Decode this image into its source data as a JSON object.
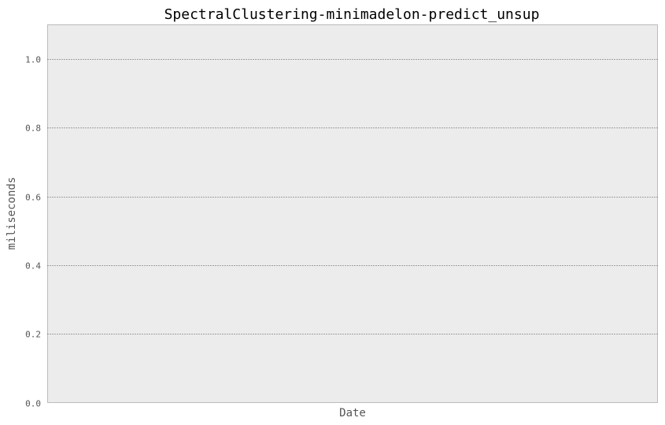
{
  "chart_data": {
    "type": "line",
    "title": "SpectralClustering-minimadelon-predict_unsup",
    "xlabel": "Date",
    "ylabel": "miliseconds",
    "ylim": [
      0.0,
      1.1
    ],
    "yticks": [
      0.0,
      0.2,
      0.4,
      0.6,
      0.8,
      1.0
    ],
    "ytick_labels": [
      "0.0",
      "0.2",
      "0.4",
      "0.6",
      "0.8",
      "1.0"
    ],
    "grid": "y-dotted",
    "series": []
  },
  "colors": {
    "plot_background": "#ececec",
    "plot_border": "#bcbcbc",
    "grid": "#555555",
    "text": "#555555"
  }
}
